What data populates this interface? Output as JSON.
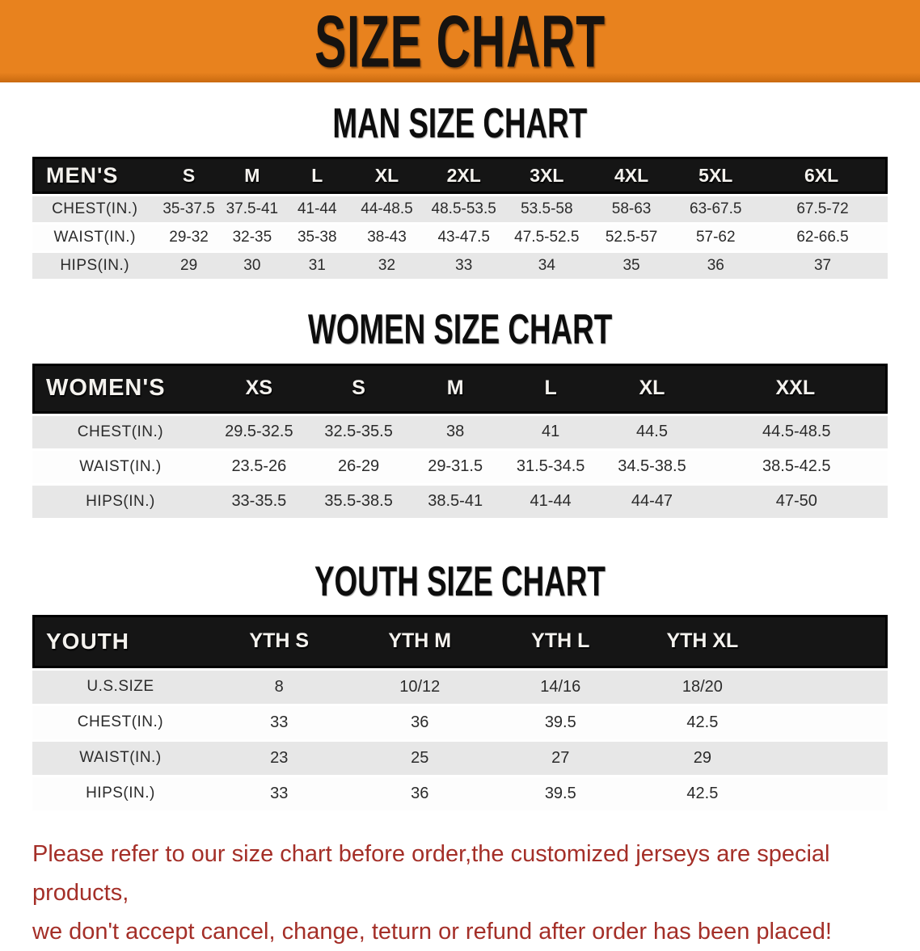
{
  "banner": {
    "title": "SIZE CHART"
  },
  "men": {
    "heading": "MAN SIZE CHART",
    "label": "MEN'S",
    "columns": [
      "S",
      "M",
      "L",
      "XL",
      "2XL",
      "3XL",
      "4XL",
      "5XL",
      "6XL"
    ],
    "rows": [
      {
        "label": "CHEST(IN.)",
        "values": [
          "35-37.5",
          "37.5-41",
          "41-44",
          "44-48.5",
          "48.5-53.5",
          "53.5-58",
          "58-63",
          "63-67.5",
          "67.5-72"
        ]
      },
      {
        "label": "WAIST(IN.)",
        "values": [
          "29-32",
          "32-35",
          "35-38",
          "38-43",
          "43-47.5",
          "47.5-52.5",
          "52.5-57",
          "57-62",
          "62-66.5"
        ]
      },
      {
        "label": "HIPS(IN.)",
        "values": [
          "29",
          "30",
          "31",
          "32",
          "33",
          "34",
          "35",
          "36",
          "37"
        ]
      }
    ]
  },
  "women": {
    "heading": "WOMEN SIZE CHART",
    "label": "WOMEN'S",
    "columns": [
      "XS",
      "S",
      "M",
      "L",
      "XL",
      "XXL"
    ],
    "rows": [
      {
        "label": "CHEST(IN.)",
        "values": [
          "29.5-32.5",
          "32.5-35.5",
          "38",
          "41",
          "44.5",
          "44.5-48.5"
        ]
      },
      {
        "label": "WAIST(IN.)",
        "values": [
          "23.5-26",
          "26-29",
          "29-31.5",
          "31.5-34.5",
          "34.5-38.5",
          "38.5-42.5"
        ]
      },
      {
        "label": "HIPS(IN.)",
        "values": [
          "33-35.5",
          "35.5-38.5",
          "38.5-41",
          "41-44",
          "44-47",
          "47-50"
        ]
      }
    ]
  },
  "youth": {
    "heading": "YOUTH SIZE CHART",
    "label": "YOUTH",
    "columns": [
      "YTH S",
      "YTH M",
      "YTH L",
      "YTH XL"
    ],
    "rows": [
      {
        "label": "U.S.SIZE",
        "values": [
          "8",
          "10/12",
          "14/16",
          "18/20"
        ]
      },
      {
        "label": "CHEST(IN.)",
        "values": [
          "33",
          "36",
          "39.5",
          "42.5"
        ]
      },
      {
        "label": "WAIST(IN.)",
        "values": [
          "23",
          "25",
          "27",
          "29"
        ]
      },
      {
        "label": "HIPS(IN.)",
        "values": [
          "33",
          "36",
          "39.5",
          "42.5"
        ]
      }
    ]
  },
  "disclaimer": {
    "line1": "Please refer to our size chart before order,the customized jerseys are special products,",
    "line2": "we don't accept cancel, change, teturn or refund after order has been placed!"
  },
  "colors": {
    "banner_orange": "#E8821E",
    "header_black": "#151515",
    "row_gray": "#E7E7E7",
    "disclaimer_red": "#A42F28"
  }
}
